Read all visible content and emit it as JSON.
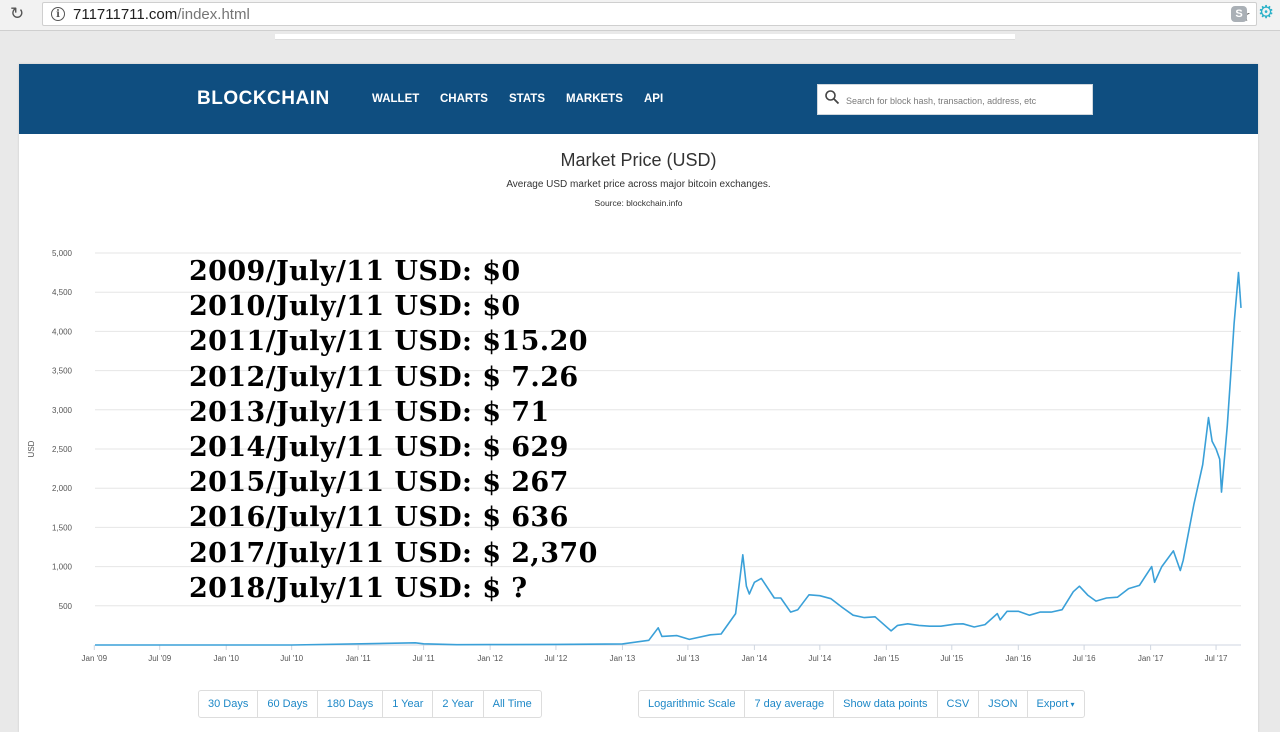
{
  "browser": {
    "url_host": "711711711.com",
    "url_path": "/index.html"
  },
  "nav": {
    "logo": "BLOCKCHAIN",
    "links": [
      "WALLET",
      "CHARTS",
      "STATS",
      "MARKETS",
      "API"
    ],
    "search_placeholder": "Search for block hash, transaction, address, etc"
  },
  "overlay_lines": [
    "2009/July/11 USD: $0",
    "2010/July/11 USD: $0",
    "2011/July/11 USD: $15.20",
    "2012/July/11 USD: $ 7.26",
    "2013/July/11 USD: $ 71",
    "2014/July/11 USD: $ 629",
    "2015/July/11 USD: $ 267",
    "2016/July/11 USD: $ 636",
    "2017/July/11 USD: $ 2,370",
    "2018/July/11 USD: $  ?"
  ],
  "range_buttons": [
    "30 Days",
    "60 Days",
    "180 Days",
    "1 Year",
    "2 Year",
    "All Time"
  ],
  "option_buttons": [
    "Logarithmic Scale",
    "7 day average",
    "Show data points",
    "CSV",
    "JSON",
    "Export"
  ],
  "colors": {
    "navbar": "#0f4e80",
    "line": "#3aa0d8",
    "link": "#1e88c7"
  },
  "chart_data": {
    "type": "line",
    "title": "Market Price (USD)",
    "subtitle": "Average USD market price across major bitcoin exchanges.",
    "source": "Source: blockchain.info",
    "ylabel": "USD",
    "xlabel": "",
    "ylim": [
      0,
      5000
    ],
    "yticks": [
      500,
      1000,
      1500,
      2000,
      2500,
      3000,
      3500,
      4000,
      4500,
      5000
    ],
    "ytick_labels": [
      "500",
      "1,000",
      "1,500",
      "2,000",
      "2,500",
      "3,000",
      "3,500",
      "4,000",
      "4,500",
      "5,000"
    ],
    "xlim": [
      "2009-01-03",
      "2017-09-08"
    ],
    "xticks": [
      "2009-01-01",
      "2009-07-01",
      "2010-01-01",
      "2010-07-01",
      "2011-01-01",
      "2011-07-01",
      "2012-01-01",
      "2012-07-01",
      "2013-01-01",
      "2013-07-01",
      "2014-01-01",
      "2014-07-01",
      "2015-01-01",
      "2015-07-01",
      "2016-01-01",
      "2016-07-01",
      "2017-01-01",
      "2017-07-01"
    ],
    "xtick_labels": [
      "Jan '09",
      "Jul '09",
      "Jan '10",
      "Jul '10",
      "Jan '11",
      "Jul '11",
      "Jan '12",
      "Jul '12",
      "Jan '13",
      "Jul '13",
      "Jan '14",
      "Jul '14",
      "Jan '15",
      "Jul '15",
      "Jan '16",
      "Jul '16",
      "Jan '17",
      "Jul '17"
    ],
    "grid": true,
    "series": [
      {
        "x": [
          "2009-01-03",
          "2010-07-01",
          "2011-06-08",
          "2011-07-01",
          "2011-10-01",
          "2012-01-01",
          "2012-07-01",
          "2013-01-01",
          "2013-03-15",
          "2013-04-10",
          "2013-04-20",
          "2013-06-01",
          "2013-07-05",
          "2013-09-01",
          "2013-10-01",
          "2013-11-10",
          "2013-11-30",
          "2013-12-10",
          "2013-12-18",
          "2014-01-01",
          "2014-01-20",
          "2014-02-25",
          "2014-03-15",
          "2014-04-11",
          "2014-05-01",
          "2014-06-01",
          "2014-07-01",
          "2014-08-01",
          "2014-09-01",
          "2014-10-01",
          "2014-11-01",
          "2014-12-01",
          "2015-01-14",
          "2015-02-01",
          "2015-03-01",
          "2015-04-01",
          "2015-05-01",
          "2015-06-01",
          "2015-07-11",
          "2015-08-01",
          "2015-09-01",
          "2015-10-01",
          "2015-11-04",
          "2015-11-12",
          "2015-12-01",
          "2016-01-01",
          "2016-02-01",
          "2016-03-01",
          "2016-04-01",
          "2016-05-01",
          "2016-06-01",
          "2016-06-18",
          "2016-07-11",
          "2016-08-03",
          "2016-09-01",
          "2016-10-01",
          "2016-11-01",
          "2016-12-01",
          "2017-01-04",
          "2017-01-12",
          "2017-02-01",
          "2017-03-05",
          "2017-03-24",
          "2017-04-01",
          "2017-05-01",
          "2017-05-25",
          "2017-06-10",
          "2017-06-20",
          "2017-07-01",
          "2017-07-11",
          "2017-07-16",
          "2017-08-01",
          "2017-08-10",
          "2017-08-20",
          "2017-09-01",
          "2017-09-05",
          "2017-09-08"
        ],
        "y": [
          0,
          0.07,
          28,
          15.2,
          4,
          5.3,
          7.26,
          13.5,
          60,
          220,
          110,
          120,
          71,
          130,
          140,
          400,
          1150,
          750,
          650,
          800,
          850,
          600,
          600,
          420,
          450,
          640,
          629,
          590,
          480,
          380,
          350,
          360,
          180,
          250,
          270,
          250,
          240,
          240,
          267,
          270,
          230,
          260,
          400,
          320,
          430,
          430,
          380,
          420,
          420,
          450,
          680,
          750,
          636,
          560,
          600,
          610,
          720,
          760,
          1000,
          800,
          1000,
          1200,
          950,
          1080,
          1800,
          2300,
          2900,
          2600,
          2500,
          2370,
          1950,
          2800,
          3400,
          4100,
          4750,
          4500,
          4300
        ]
      }
    ]
  }
}
